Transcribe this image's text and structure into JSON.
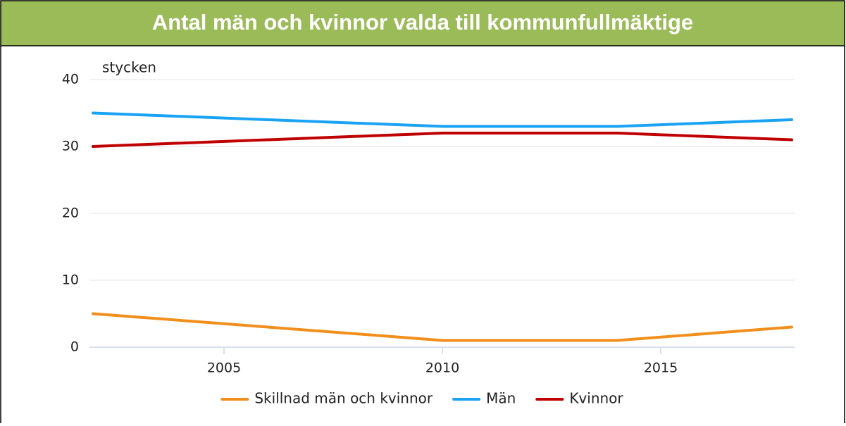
{
  "chart_data": {
    "type": "line",
    "title": "Antal män och kvinnor valda till kommunfullmäktige",
    "ylabel": "stycken",
    "x": [
      2002,
      2010,
      2014,
      2018
    ],
    "series": [
      {
        "name": "Skillnad män och kvinnor",
        "color": "#f28f1c",
        "values": [
          5,
          1,
          1,
          3
        ]
      },
      {
        "name": "Män",
        "color": "#1aa3f5",
        "values": [
          35,
          33,
          33,
          34
        ]
      },
      {
        "name": "Kvinnor",
        "color": "#c00000",
        "values": [
          30,
          32,
          32,
          31
        ]
      }
    ],
    "xlim": [
      2002,
      2018
    ],
    "xticks": [
      2005,
      2010,
      2015
    ],
    "ylim": [
      0,
      40
    ],
    "yticks": [
      0,
      10,
      20,
      30,
      40
    ],
    "grid": true,
    "legend": "bottom"
  }
}
